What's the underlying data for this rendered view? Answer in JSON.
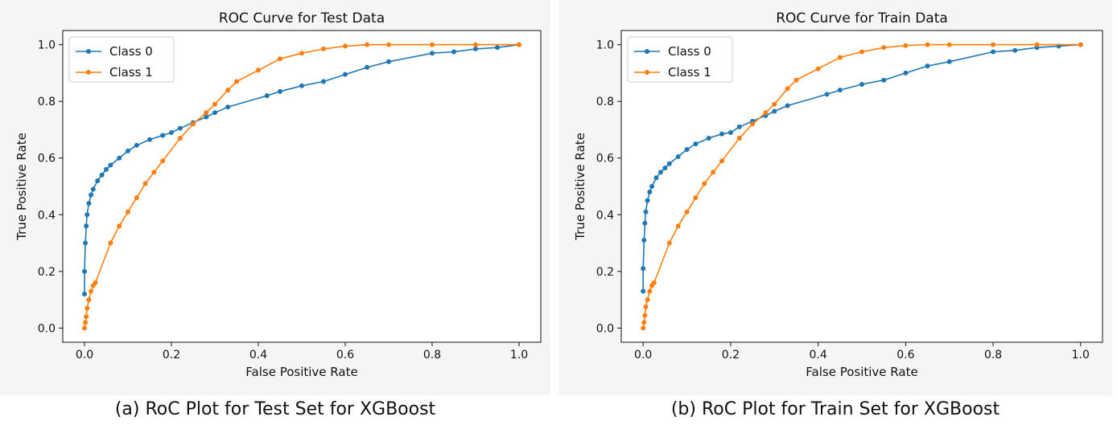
{
  "chart_data": [
    {
      "type": "line",
      "title": "ROC Curve for Test Data",
      "xlabel": "False Positive Rate",
      "ylabel": "True Positive Rate",
      "xlim": [
        -0.05,
        1.05
      ],
      "ylim": [
        -0.05,
        1.05
      ],
      "xticks": [
        "0.0",
        "0.2",
        "0.4",
        "0.6",
        "0.8",
        "1.0"
      ],
      "yticks": [
        "0.0",
        "0.2",
        "0.4",
        "0.6",
        "0.8",
        "1.0"
      ],
      "grid": false,
      "legend_position": "upper-left",
      "series": [
        {
          "name": "Class 0",
          "color": "#1f77b4",
          "x": [
            0,
            0,
            0.002,
            0.004,
            0.006,
            0.01,
            0.015,
            0.02,
            0.03,
            0.04,
            0.05,
            0.06,
            0.08,
            0.1,
            0.12,
            0.15,
            0.18,
            0.2,
            0.22,
            0.25,
            0.28,
            0.3,
            0.33,
            0.42,
            0.45,
            0.5,
            0.55,
            0.6,
            0.65,
            0.7,
            0.8,
            0.85,
            0.9,
            0.95,
            1.0
          ],
          "y": [
            0.12,
            0.2,
            0.3,
            0.36,
            0.4,
            0.44,
            0.47,
            0.49,
            0.52,
            0.54,
            0.56,
            0.575,
            0.6,
            0.625,
            0.645,
            0.665,
            0.68,
            0.69,
            0.705,
            0.725,
            0.745,
            0.76,
            0.78,
            0.82,
            0.835,
            0.855,
            0.87,
            0.895,
            0.92,
            0.94,
            0.97,
            0.975,
            0.985,
            0.99,
            1.0
          ]
        },
        {
          "name": "Class 1",
          "color": "#ff7f0e",
          "x": [
            0,
            0.002,
            0.004,
            0.006,
            0.01,
            0.015,
            0.02,
            0.025,
            0.06,
            0.08,
            0.1,
            0.12,
            0.14,
            0.16,
            0.18,
            0.22,
            0.25,
            0.28,
            0.3,
            0.33,
            0.35,
            0.4,
            0.45,
            0.5,
            0.55,
            0.6,
            0.65,
            0.7,
            0.8,
            0.9,
            1.0
          ],
          "y": [
            0,
            0.02,
            0.04,
            0.07,
            0.1,
            0.13,
            0.15,
            0.16,
            0.3,
            0.36,
            0.41,
            0.46,
            0.51,
            0.55,
            0.59,
            0.67,
            0.72,
            0.76,
            0.79,
            0.84,
            0.87,
            0.91,
            0.95,
            0.97,
            0.985,
            0.995,
            1.0,
            1.0,
            1.0,
            1.0,
            1.0
          ]
        }
      ]
    },
    {
      "type": "line",
      "title": "ROC Curve for Train Data",
      "xlabel": "False Positive Rate",
      "ylabel": "True Positive Rate",
      "xlim": [
        -0.05,
        1.05
      ],
      "ylim": [
        -0.05,
        1.05
      ],
      "xticks": [
        "0.0",
        "0.2",
        "0.4",
        "0.6",
        "0.8",
        "1.0"
      ],
      "yticks": [
        "0.0",
        "0.2",
        "0.4",
        "0.6",
        "0.8",
        "1.0"
      ],
      "grid": false,
      "legend_position": "upper-left",
      "series": [
        {
          "name": "Class 0",
          "color": "#1f77b4",
          "x": [
            0,
            0,
            0.002,
            0.004,
            0.006,
            0.01,
            0.015,
            0.02,
            0.03,
            0.04,
            0.05,
            0.06,
            0.08,
            0.1,
            0.12,
            0.15,
            0.18,
            0.2,
            0.22,
            0.25,
            0.28,
            0.3,
            0.33,
            0.42,
            0.45,
            0.5,
            0.55,
            0.6,
            0.65,
            0.7,
            0.8,
            0.85,
            0.9,
            0.95,
            1.0
          ],
          "y": [
            0.13,
            0.21,
            0.31,
            0.37,
            0.41,
            0.45,
            0.48,
            0.5,
            0.53,
            0.55,
            0.565,
            0.58,
            0.605,
            0.63,
            0.65,
            0.67,
            0.685,
            0.69,
            0.71,
            0.73,
            0.75,
            0.765,
            0.785,
            0.825,
            0.84,
            0.86,
            0.875,
            0.9,
            0.925,
            0.94,
            0.975,
            0.98,
            0.99,
            0.995,
            1.0
          ]
        },
        {
          "name": "Class 1",
          "color": "#ff7f0e",
          "x": [
            0,
            0.002,
            0.004,
            0.006,
            0.01,
            0.015,
            0.02,
            0.025,
            0.06,
            0.08,
            0.1,
            0.12,
            0.14,
            0.16,
            0.18,
            0.22,
            0.25,
            0.28,
            0.3,
            0.33,
            0.35,
            0.4,
            0.45,
            0.5,
            0.55,
            0.6,
            0.65,
            0.7,
            0.8,
            0.9,
            1.0
          ],
          "y": [
            0,
            0.02,
            0.045,
            0.075,
            0.1,
            0.13,
            0.15,
            0.16,
            0.3,
            0.36,
            0.41,
            0.46,
            0.51,
            0.55,
            0.59,
            0.67,
            0.72,
            0.76,
            0.79,
            0.845,
            0.875,
            0.915,
            0.955,
            0.975,
            0.99,
            0.997,
            1.0,
            1.0,
            1.0,
            1.0,
            1.0
          ]
        }
      ]
    }
  ],
  "captions": [
    "(a) RoC Plot for Test Set for XGBoost",
    "(b) RoC Plot for Train Set for XGBoost"
  ]
}
